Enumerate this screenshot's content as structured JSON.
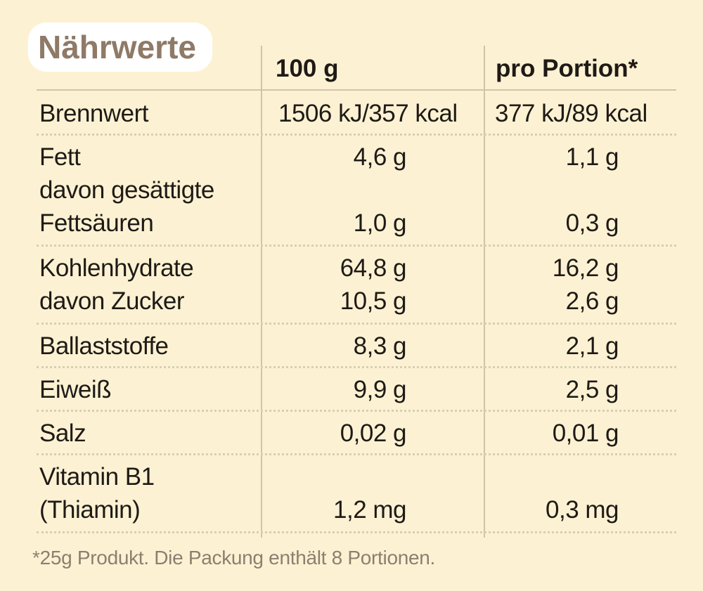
{
  "header": {
    "title": "Nährwerte",
    "col_100g": "100 g",
    "col_portion": "pro Portion*"
  },
  "table": {
    "rows": [
      {
        "lines": [
          {
            "label": "Brennwert",
            "per_100g": "1506 kJ/357 kcal",
            "per_portion": "377 kJ/89 kcal"
          }
        ]
      },
      {
        "lines": [
          {
            "label": "Fett",
            "per_100g": "4,6 g",
            "per_portion": "1,1 g"
          },
          {
            "label": "davon gesättigte"
          },
          {
            "label": "Fettsäuren",
            "per_100g": "1,0 g",
            "per_portion": "0,3 g"
          }
        ]
      },
      {
        "lines": [
          {
            "label": "Kohlenhydrate",
            "per_100g": "64,8 g",
            "per_portion": "16,2 g"
          },
          {
            "label": "davon Zucker",
            "per_100g": "10,5 g",
            "per_portion": "2,6 g"
          }
        ]
      },
      {
        "lines": [
          {
            "label": "Ballaststoffe",
            "per_100g": "8,3 g",
            "per_portion": "2,1 g"
          }
        ]
      },
      {
        "lines": [
          {
            "label": "Eiweiß",
            "per_100g": "9,9 g",
            "per_portion": "2,5 g"
          }
        ]
      },
      {
        "lines": [
          {
            "label": "Salz",
            "per_100g": "0,02 g",
            "per_portion": "0,01 g"
          }
        ]
      },
      {
        "lines": [
          {
            "label": "Vitamin B1"
          },
          {
            "label": "(Thiamin)",
            "per_100g": "1,2 mg",
            "per_portion": "0,3 mg"
          }
        ]
      }
    ]
  },
  "footnote": "*25g Produkt. Die Packung enthält 8 Portionen."
}
